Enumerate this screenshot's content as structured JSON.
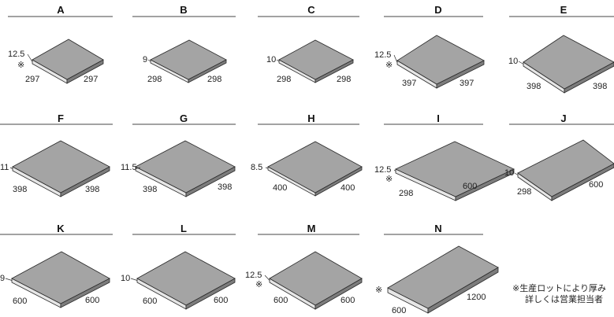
{
  "tiles": [
    {
      "label": "A",
      "thickness": "12.5",
      "mark": "※",
      "width": "297",
      "depth": "297"
    },
    {
      "label": "B",
      "thickness": "9",
      "mark": "",
      "width": "298",
      "depth": "298"
    },
    {
      "label": "C",
      "thickness": "10",
      "mark": "",
      "width": "298",
      "depth": "298"
    },
    {
      "label": "D",
      "thickness": "12.5",
      "mark": "※",
      "width": "397",
      "depth": "397"
    },
    {
      "label": "E",
      "thickness": "10",
      "mark": "",
      "width": "398",
      "depth": "398"
    },
    {
      "label": "F",
      "thickness": "11",
      "mark": "",
      "width": "398",
      "depth": "398"
    },
    {
      "label": "G",
      "thickness": "11.5",
      "mark": "",
      "width": "398",
      "depth": "398"
    },
    {
      "label": "H",
      "thickness": "8.5",
      "mark": "",
      "width": "400",
      "depth": "400"
    },
    {
      "label": "I",
      "thickness": "12.5",
      "mark": "※",
      "width": "298",
      "depth": "600"
    },
    {
      "label": "J",
      "thickness": "10",
      "mark": "",
      "width": "298",
      "depth": "600"
    },
    {
      "label": "K",
      "thickness": "9",
      "mark": "",
      "width": "600",
      "depth": "600"
    },
    {
      "label": "L",
      "thickness": "10",
      "mark": "",
      "width": "600",
      "depth": "600"
    },
    {
      "label": "M",
      "thickness": "12.5",
      "mark": "※",
      "width": "600",
      "depth": "600"
    },
    {
      "label": "N",
      "thickness": "",
      "mark": "※",
      "width": "600",
      "depth": "1200"
    }
  ],
  "note": {
    "line1": "※生産ロットにより厚み",
    "line2": "詳しくは営業担当者"
  },
  "colors": {
    "top": "#a4a4a4",
    "left_side": "#e6e6e6",
    "right_side": "#7c7c7c",
    "edge": "#2a2a2a",
    "rule": "#444444"
  }
}
